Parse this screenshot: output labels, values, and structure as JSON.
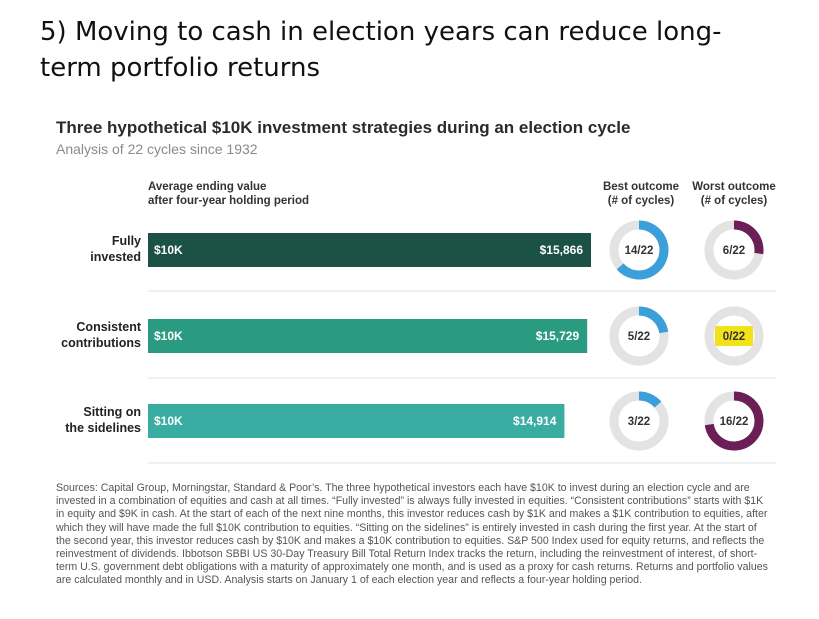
{
  "headline": [
    "5) Moving to cash in election years can reduce long-",
    "term portfolio returns"
  ],
  "chart_data": {
    "type": "bar",
    "title": "Three hypothetical $10K investment strategies during an election cycle",
    "subtitle": "Analysis of 22 cycles since 1932",
    "column_headers": {
      "average": [
        "Average ending value",
        "after four-year holding period"
      ],
      "best": [
        "Best outcome",
        "(# of cycles)"
      ],
      "worst": [
        "Worst outcome",
        "(# of cycles)"
      ]
    },
    "start_label": "$10K",
    "total_cycles": 22,
    "rows": [
      {
        "label": [
          "Fully",
          "invested"
        ],
        "value": 15866,
        "value_label": "$15,866",
        "color": "#1b5245",
        "best": 14,
        "best_label": "14/22",
        "worst": 6,
        "worst_label": "6/22",
        "worst_highlight": false
      },
      {
        "label": [
          "Consistent",
          "contributions"
        ],
        "value": 15729,
        "value_label": "$15,729",
        "color": "#2a9a80",
        "best": 5,
        "best_label": "5/22",
        "worst": 0,
        "worst_label": "0/22",
        "worst_highlight": true
      },
      {
        "label": [
          "Sitting on",
          "the sidelines"
        ],
        "value": 14914,
        "value_label": "$14,914",
        "color": "#3aada3",
        "best": 3,
        "best_label": "3/22",
        "worst": 16,
        "worst_label": "16/22",
        "worst_highlight": false
      }
    ],
    "colors": {
      "best_ring": "#3b9fd9",
      "worst_ring": "#6b1f56",
      "ring_track": "#e3e3e3",
      "highlight": "#f2e21a"
    },
    "sources": "Sources: Capital Group, Morningstar, Standard & Poor’s. The three hypothetical investors each have $10K to invest during an election cycle and are invested in a combination of equities and cash at all times. “Fully invested” is always fully invested in equities. “Consistent contributions” starts with $1K in equity and $9K in cash. At the start of each of the next nine months, this investor reduces cash by $1K and makes a $1K contribution to equities, after which they will have made the full $10K contribution to equities. “Sitting on the sidelines” is entirely invested in cash during the first year. At the start of the second year, this investor reduces cash by $10K and makes a $10K contribution to equities. S&P 500 Index used for equity returns, and reflects the reinvestment of dividends. Ibbotson SBBI US 30-Day Treasury Bill Total Return Index tracks the return, including the reinvestment of interest, of short-term U.S. government debt obligations with a maturity of approximately one month, and is used as a proxy for cash returns. Returns and portfolio values are calculated monthly and in USD. Analysis starts on January 1 of each election year and reflects a four-year holding period."
  }
}
